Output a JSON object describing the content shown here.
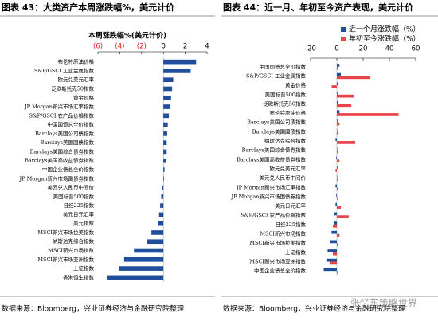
{
  "figures": [
    {
      "heading": "图表 43：大类资产本周涨跌幅%，美元计价",
      "source": "数据来源：Bloomberg，兴业证券经济与金融研究院整理"
    },
    {
      "heading": "图表 44：近一月、年初至今资产表现，美元计价",
      "source": "数据来源：Bloomberg，兴业证券经济与金融研究院整理"
    }
  ],
  "watermark": "张忆东策略世界",
  "chart_data": [
    {
      "type": "bar",
      "orientation": "horizontal",
      "title": "本周涨跌幅%(美元计价)",
      "categories": [
        "布伦特原油价格",
        "S&P/GSCI 工业金属指数",
        "欧元兑美元汇率",
        "泛欧斯托克50指数",
        "黄金价格",
        "JP Morgan新兴市场汇率指数",
        "S&P/GSCI 农产品价格指数",
        "中国国债总全价指数",
        "Barclays美国公司债指数",
        "Barclays美国国债指数",
        "Barclays美国综合债券指数",
        "Barclays美国高收益债券指数",
        "中国企业债总全价指数",
        "JP Morgan新兴市场国债券指数",
        "美元兑人民币中间价",
        "美国标普500指数",
        "日经225指数",
        "美元日元汇率",
        "美元指数",
        "MSCI新兴市场拉美指数",
        "纳斯达克综合指数",
        "MSCI新兴市场指数",
        "MSCI新兴市场亚洲指数",
        "上证指数",
        "香港恒生指数"
      ],
      "series": [
        {
          "color": "#1f4e9c",
          "values": [
            3.0,
            2.5,
            0.9,
            0.8,
            0.7,
            0.6,
            0.5,
            0.4,
            0.35,
            0.3,
            0.3,
            0.25,
            0.1,
            0.05,
            -0.1,
            -0.2,
            -0.3,
            -0.4,
            -0.5,
            -1.1,
            -1.5,
            -2.7,
            -3.6,
            -4.1,
            -5.2
          ]
        }
      ],
      "xlim": [
        -6,
        4
      ],
      "xticks": [
        {
          "value": -6,
          "label": "(6)"
        },
        {
          "value": -4,
          "label": "(4)"
        },
        {
          "value": -2,
          "label": "(2)"
        },
        0,
        2,
        4
      ],
      "negative_tick_color": "#e02020"
    },
    {
      "type": "bar",
      "orientation": "horizontal",
      "legend": "top-right",
      "categories": [
        "中国国债总全价指数",
        "S&P/GSCI 工业金属指数",
        "黄金价格",
        "美国标普500指数",
        "泛欧斯托克50指数",
        "布伦特原油价格",
        "Barclays美国公司债指数",
        "Barclays美国国债指数",
        "纳斯达克综合指数",
        "Barclays美国综合债券指数",
        "Barclays美国高收益债券指数",
        "欧元兑美元汇率",
        "美元兑人民币中间价",
        "JP Morgan新兴市场汇率指数",
        "JP Morgan新兴市场国债券指数",
        "美元日元汇率",
        "S&P/GSCI 农产品价格指数",
        "日经225指数",
        "MSCI新兴市场指数",
        "MSCI新兴市场拉美指数",
        "上证指数",
        "MSCI新兴市场亚洲指数",
        "中国企业债总全价指数"
      ],
      "series": [
        {
          "name": "近一个月涨跌幅（%）",
          "color": "#1f4e9c",
          "values": [
            2,
            3,
            1,
            0.5,
            1,
            2,
            0.5,
            0.3,
            -1,
            0.3,
            -0.5,
            0.5,
            0.3,
            -1,
            -0.5,
            -1,
            -2,
            -2,
            -4,
            -5,
            -7,
            -8,
            -10
          ]
        },
        {
          "name": "年初至今涨跌幅（%）",
          "color": "#e8454a",
          "values": [
            1,
            25,
            -4,
            13,
            11,
            47,
            2,
            1,
            14,
            1,
            2,
            -1,
            0.5,
            1,
            0.5,
            3,
            9,
            -3,
            2,
            1,
            -3,
            -5,
            0.5
          ]
        }
      ],
      "xlim": [
        -20,
        60
      ],
      "xticks": [
        -20,
        0,
        20,
        40,
        60
      ]
    }
  ]
}
